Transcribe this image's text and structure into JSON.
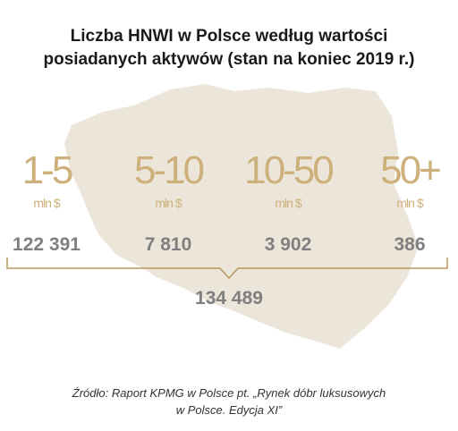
{
  "title": [
    "Liczba HNWI w Polsce według wartości",
    "posiadanych aktywów (stan na koniec 2019 r.)"
  ],
  "groups": [
    {
      "range": "1-5",
      "unit": "mln $",
      "count": "122 391"
    },
    {
      "range": "5-10",
      "unit": "mln $",
      "count": "7 810"
    },
    {
      "range": "10-50",
      "unit": "mln $",
      "count": "3 902"
    },
    {
      "range": "50+",
      "unit": "mln $",
      "count": "386"
    }
  ],
  "total": "134 489",
  "source": [
    "Źródło: Raport KPMG w Polsce pt. „Rynek dóbr luksusowych",
    "w Polsce. Edycja XI”"
  ]
}
